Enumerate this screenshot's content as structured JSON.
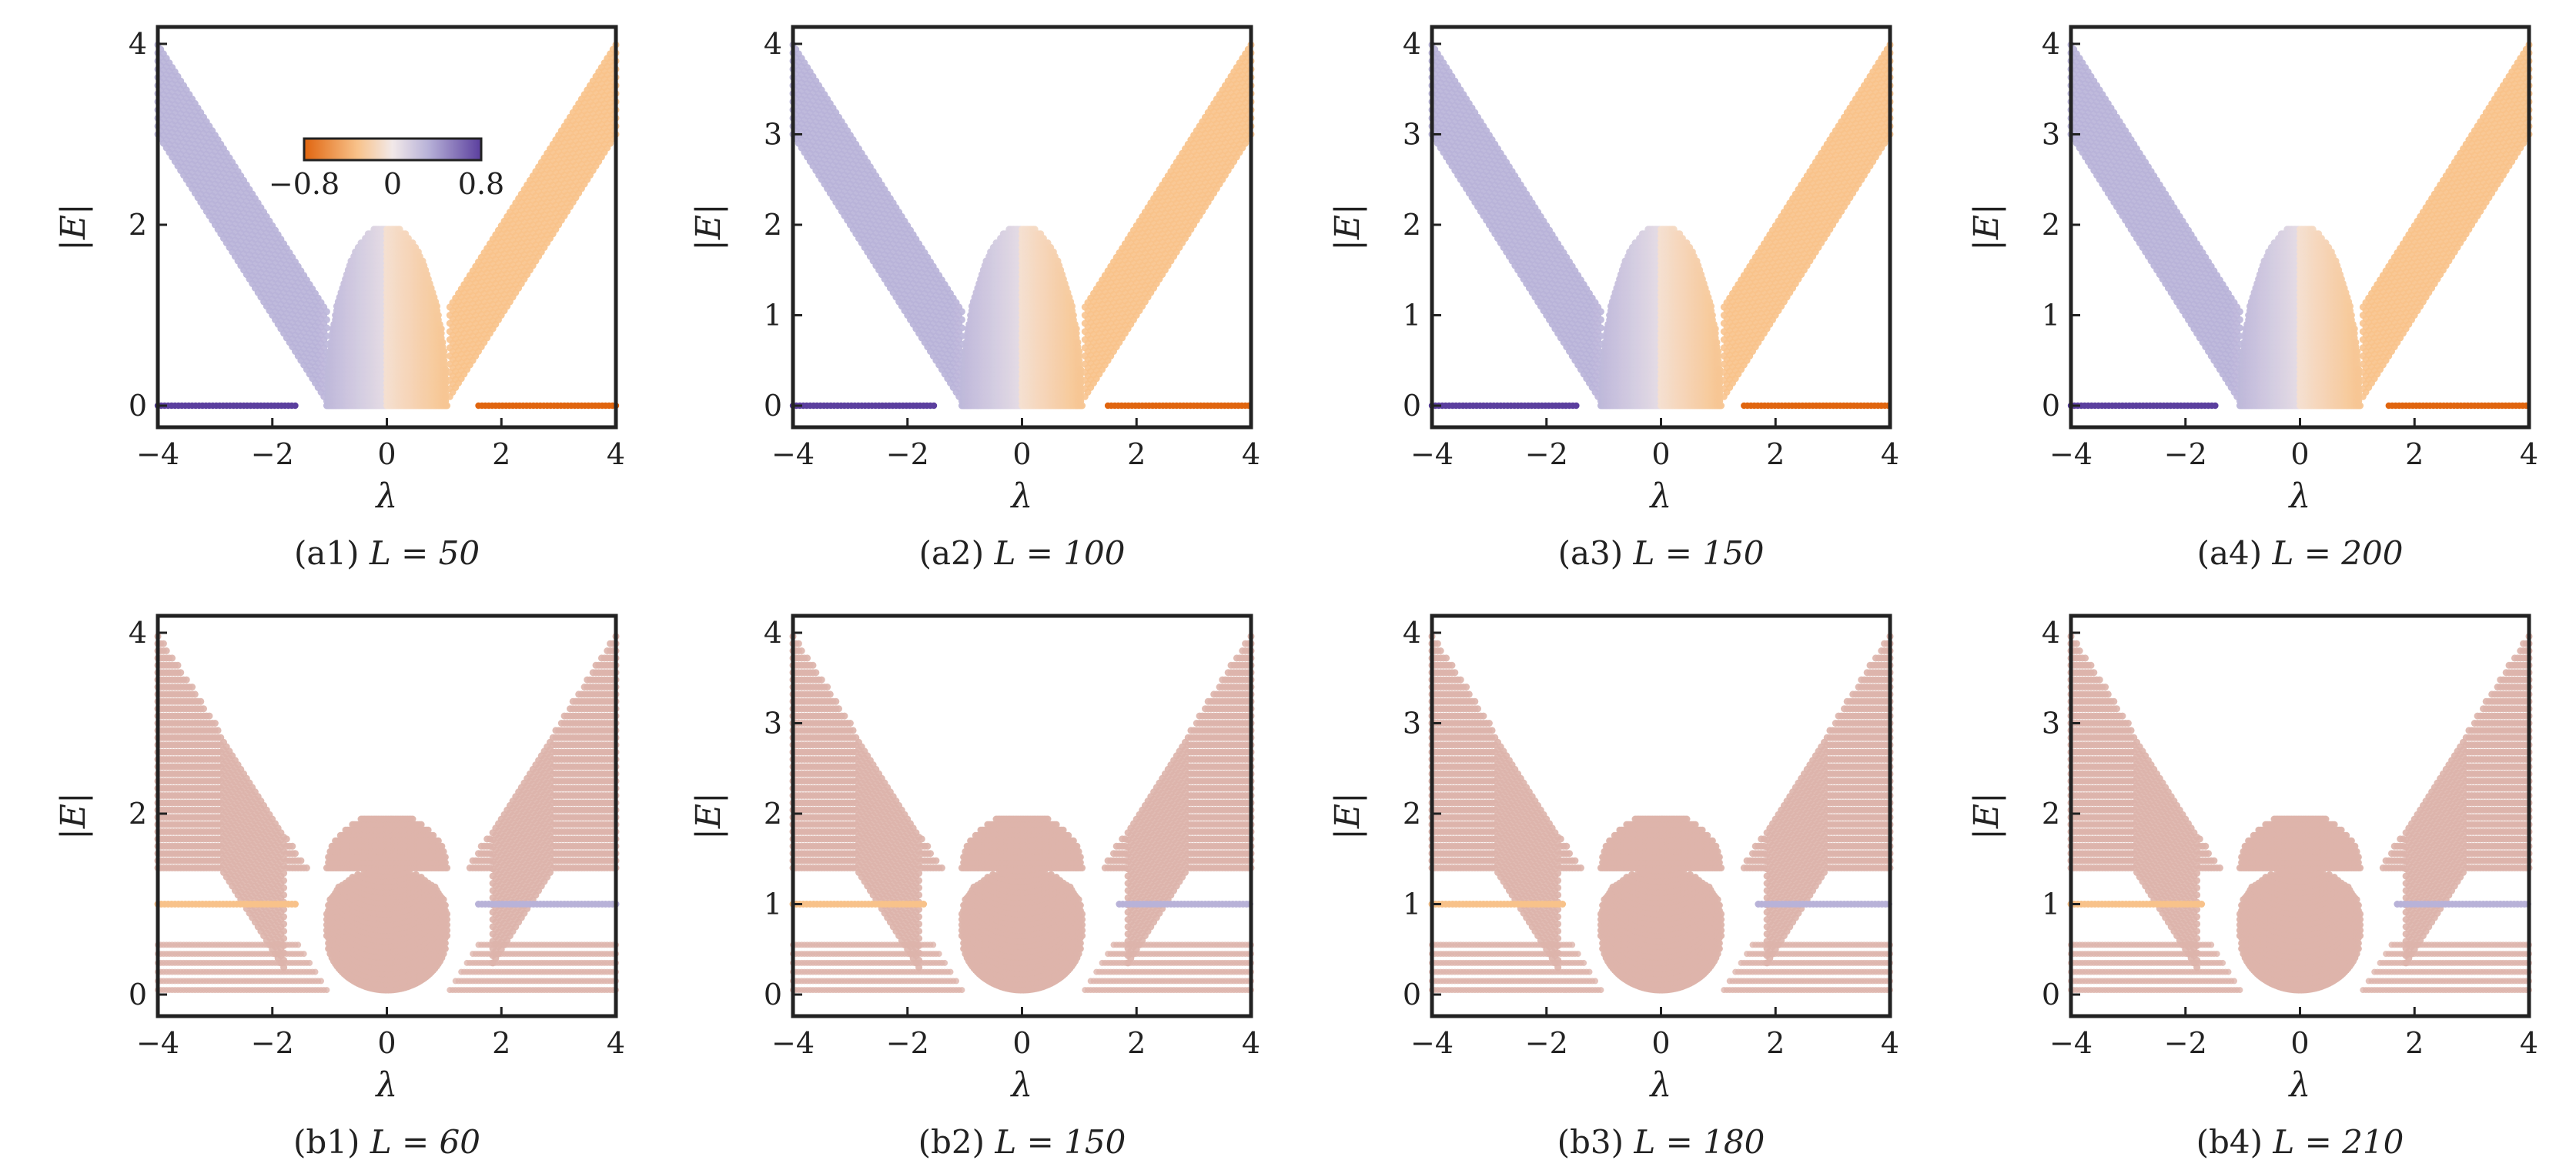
{
  "colors": {
    "purple": "#5b3f9e",
    "lavender": "#b8b2d8",
    "neutral": "#f2e9e9",
    "light_orange": "#f8c28a",
    "orange": "#e0650f",
    "pink_band": "#ddb4ab",
    "axis": "#222222"
  },
  "chart_data": [
    {
      "id": "a1",
      "type": "scatter",
      "panel_label": "(a1)",
      "L_label": "L = 50",
      "xlabel": "λ",
      "ylabel": "|E|",
      "xlim": [
        -4,
        4
      ],
      "ylim": [
        0,
        4
      ],
      "xticks": [
        "−4",
        "−2",
        "0",
        "2",
        "4"
      ],
      "yticks": [
        "0",
        "2",
        "4"
      ],
      "family": "open",
      "colorbar": {
        "min_label": "−0.8",
        "mid_label": "0",
        "max_label": "0.8",
        "range": [
          -0.8,
          0.8
        ],
        "placement": "top-center"
      },
      "zero_modes": [
        {
          "x": [
            -4,
            -1.6
          ],
          "E": 0,
          "color": "purple"
        },
        {
          "x": [
            1.6,
            4
          ],
          "E": 0,
          "color": "orange"
        }
      ]
    },
    {
      "id": "a2",
      "type": "scatter",
      "panel_label": "(a2)",
      "L_label": "L = 100",
      "xlabel": "λ",
      "ylabel": "|E|",
      "xlim": [
        -4,
        4
      ],
      "ylim": [
        0,
        4
      ],
      "xticks": [
        "−4",
        "−2",
        "0",
        "2",
        "4"
      ],
      "yticks": [
        "0",
        "1",
        "2",
        "3",
        "4"
      ],
      "family": "open",
      "zero_modes": [
        {
          "x": [
            -4,
            -1.5
          ],
          "E": 0,
          "color": "purple"
        },
        {
          "x": [
            1.5,
            4
          ],
          "E": 0,
          "color": "orange"
        }
      ]
    },
    {
      "id": "a3",
      "type": "scatter",
      "panel_label": "(a3)",
      "L_label": "L = 150",
      "xlabel": "λ",
      "ylabel": "|E|",
      "xlim": [
        -4,
        4
      ],
      "ylim": [
        0,
        4
      ],
      "xticks": [
        "−4",
        "−2",
        "0",
        "2",
        "4"
      ],
      "yticks": [
        "0",
        "1",
        "2",
        "3",
        "4"
      ],
      "family": "open",
      "zero_modes": [
        {
          "x": [
            -4,
            -1.45
          ],
          "E": 0,
          "color": "purple"
        },
        {
          "x": [
            1.45,
            4
          ],
          "E": 0,
          "color": "orange"
        }
      ]
    },
    {
      "id": "a4",
      "type": "scatter",
      "panel_label": "(a4)",
      "L_label": "L = 200",
      "xlabel": "λ",
      "ylabel": "|E|",
      "xlim": [
        -4,
        4
      ],
      "ylim": [
        0,
        4
      ],
      "xticks": [
        "−4",
        "−2",
        "0",
        "2",
        "4"
      ],
      "yticks": [
        "0",
        "1",
        "2",
        "3",
        "4"
      ],
      "family": "open",
      "zero_modes": [
        {
          "x": [
            -4,
            -1.45
          ],
          "E": 0,
          "color": "purple"
        },
        {
          "x": [
            1.55,
            4
          ],
          "E": 0,
          "color": "orange"
        }
      ]
    },
    {
      "id": "b1",
      "type": "scatter",
      "panel_label": "(b1)",
      "L_label": "L = 60",
      "xlabel": "λ",
      "ylabel": "|E|",
      "xlim": [
        -4,
        4
      ],
      "ylim": [
        0,
        4
      ],
      "xticks": [
        "−4",
        "−2",
        "0",
        "2",
        "4"
      ],
      "yticks": [
        "0",
        "2",
        "4"
      ],
      "family": "domain_wall",
      "edge_modes": [
        {
          "x": [
            -4,
            -1.6
          ],
          "E": 1,
          "color": "light_orange"
        },
        {
          "x": [
            1.6,
            4
          ],
          "E": 1,
          "color": "lavender"
        }
      ]
    },
    {
      "id": "b2",
      "type": "scatter",
      "panel_label": "(b2)",
      "L_label": "L = 150",
      "xlabel": "λ",
      "ylabel": "|E|",
      "xlim": [
        -4,
        4
      ],
      "ylim": [
        0,
        4
      ],
      "xticks": [
        "−4",
        "−2",
        "0",
        "2",
        "4"
      ],
      "yticks": [
        "0",
        "1",
        "2",
        "3",
        "4"
      ],
      "family": "domain_wall",
      "edge_modes": [
        {
          "x": [
            -4,
            -1.7
          ],
          "E": 1,
          "color": "light_orange"
        },
        {
          "x": [
            1.7,
            4
          ],
          "E": 1,
          "color": "lavender"
        }
      ]
    },
    {
      "id": "b3",
      "type": "scatter",
      "panel_label": "(b3)",
      "L_label": "L = 180",
      "xlabel": "λ",
      "ylabel": "|E|",
      "xlim": [
        -4,
        4
      ],
      "ylim": [
        0,
        4
      ],
      "xticks": [
        "−4",
        "−2",
        "0",
        "2",
        "4"
      ],
      "yticks": [
        "0",
        "1",
        "2",
        "3",
        "4"
      ],
      "family": "domain_wall",
      "edge_modes": [
        {
          "x": [
            -4,
            -1.7
          ],
          "E": 1,
          "color": "light_orange"
        },
        {
          "x": [
            1.7,
            4
          ],
          "E": 1,
          "color": "lavender"
        }
      ]
    },
    {
      "id": "b4",
      "type": "scatter",
      "panel_label": "(b4)",
      "L_label": "L = 210",
      "xlabel": "λ",
      "ylabel": "|E|",
      "xlim": [
        -4,
        4
      ],
      "ylim": [
        0,
        4
      ],
      "xticks": [
        "−4",
        "−2",
        "0",
        "2",
        "4"
      ],
      "yticks": [
        "0",
        "1",
        "2",
        "3",
        "4"
      ],
      "family": "domain_wall",
      "edge_modes": [
        {
          "x": [
            -4,
            -1.7
          ],
          "E": 1,
          "color": "light_orange"
        },
        {
          "x": [
            1.7,
            4
          ],
          "E": 1,
          "color": "lavender"
        }
      ]
    }
  ]
}
